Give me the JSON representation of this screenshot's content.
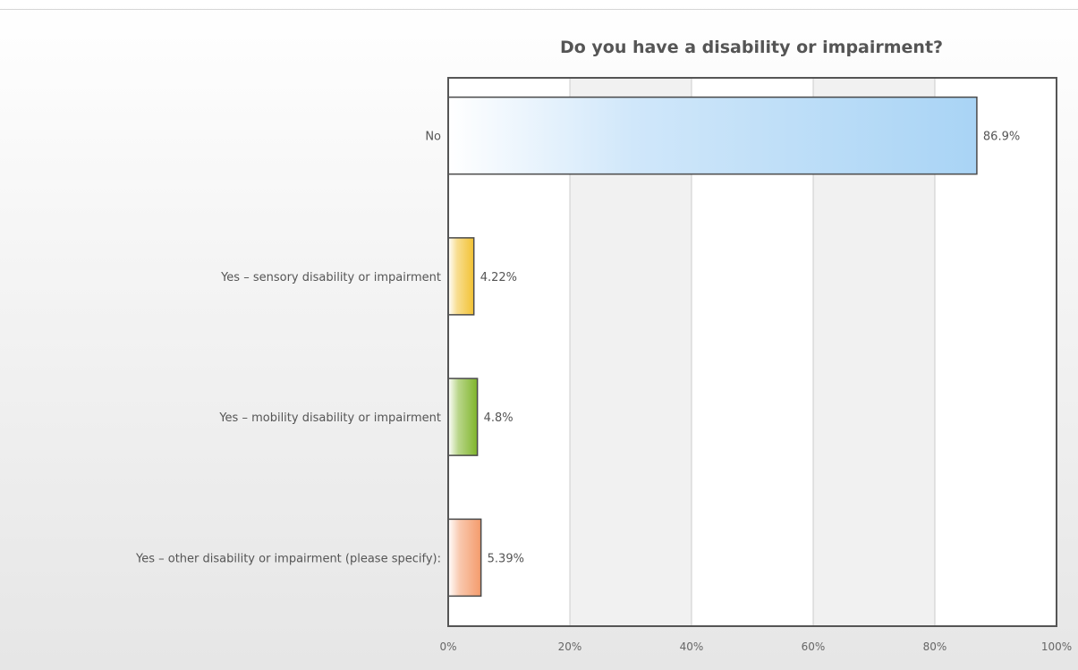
{
  "chart_data": {
    "type": "bar",
    "orientation": "horizontal",
    "title": "Do you have a disability or impairment?",
    "xlabel": "",
    "ylabel": "",
    "xlim": [
      0,
      100
    ],
    "grid": true,
    "x_ticks": [
      "0%",
      "20%",
      "40%",
      "60%",
      "80%",
      "100%"
    ],
    "categories": [
      "No",
      "Yes – sensory disability or impairment",
      "Yes – mobility disability or impairment",
      "Yes – other disability or impairment (please specify):"
    ],
    "values": [
      86.9,
      4.22,
      4.8,
      5.39
    ],
    "value_labels": [
      "86.9%",
      "4.22%",
      "4.8%",
      "5.39%"
    ],
    "bar_colors": [
      "#a9d4f5",
      "#f2c233",
      "#7fb52a",
      "#f49b6c"
    ]
  }
}
